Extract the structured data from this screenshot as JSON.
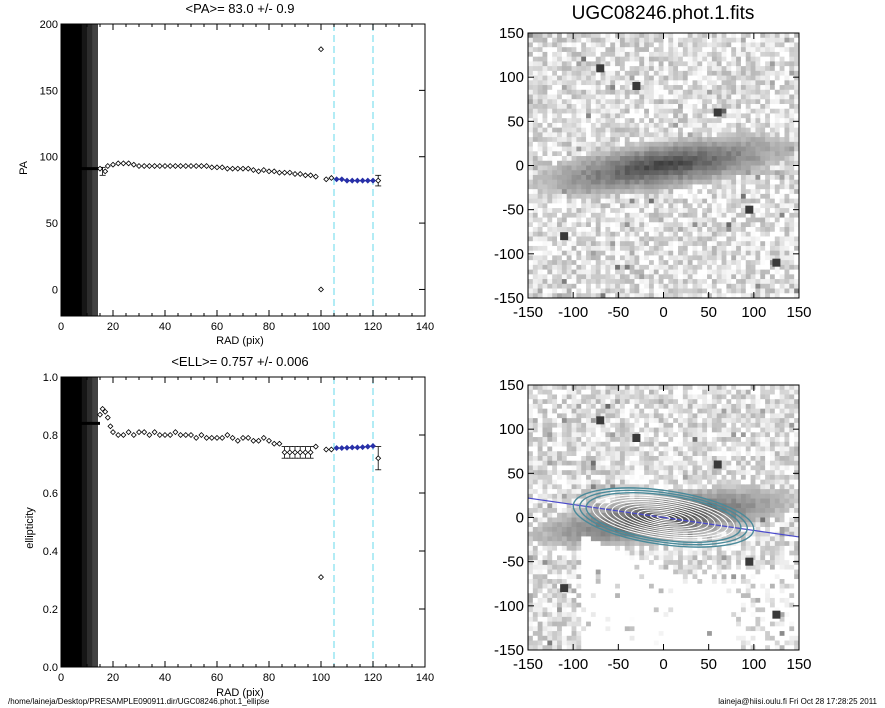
{
  "chart_data": [
    {
      "type": "scatter",
      "title": "<PA>=  83.0 +/-   0.9",
      "xlabel": "RAD (pix)",
      "ylabel": "PA",
      "xlim": [
        0,
        140
      ],
      "ylim": [
        -20,
        200
      ],
      "xticks": [
        0,
        20,
        40,
        60,
        80,
        100,
        120,
        140
      ],
      "yticks": [
        0,
        50,
        100,
        150,
        200
      ],
      "shaded_region_x": [
        0,
        14
      ],
      "dashed_lines_x": [
        105,
        120
      ],
      "series": [
        {
          "points": [
            [
              15,
              91
            ],
            [
              17,
              89
            ],
            [
              18,
              93
            ],
            [
              20,
              94
            ],
            [
              22,
              95
            ],
            [
              24,
              95
            ],
            [
              26,
              95
            ],
            [
              28,
              94
            ],
            [
              30,
              93
            ],
            [
              32,
              93
            ],
            [
              34,
              93
            ],
            [
              36,
              93
            ],
            [
              38,
              93
            ],
            [
              40,
              93
            ],
            [
              42,
              93
            ],
            [
              44,
              93
            ],
            [
              46,
              93
            ],
            [
              48,
              93
            ],
            [
              50,
              93
            ],
            [
              52,
              93
            ],
            [
              54,
              93
            ],
            [
              56,
              93
            ],
            [
              58,
              92
            ],
            [
              60,
              92
            ],
            [
              62,
              92
            ],
            [
              64,
              91
            ],
            [
              66,
              91
            ],
            [
              68,
              91
            ],
            [
              70,
              91
            ],
            [
              72,
              91
            ],
            [
              74,
              90
            ],
            [
              76,
              89
            ],
            [
              78,
              90
            ],
            [
              80,
              89
            ],
            [
              82,
              89
            ],
            [
              84,
              88
            ],
            [
              86,
              88
            ],
            [
              88,
              88
            ],
            [
              90,
              87
            ],
            [
              92,
              87
            ],
            [
              94,
              86
            ],
            [
              96,
              86
            ],
            [
              98,
              85
            ],
            [
              100,
              0
            ],
            [
              100,
              181
            ],
            [
              102,
              83
            ],
            [
              104,
              84
            ],
            [
              122,
              82
            ]
          ],
          "error_bar_points": [
            [
              16,
              89,
              3
            ],
            [
              122,
              82,
              4
            ]
          ]
        },
        {
          "color": "#2830a8",
          "points": [
            [
              106,
              83
            ],
            [
              108,
              83
            ],
            [
              110,
              82
            ],
            [
              112,
              82
            ],
            [
              114,
              82
            ],
            [
              116,
              82
            ],
            [
              118,
              82
            ],
            [
              120,
              82
            ]
          ]
        }
      ]
    },
    {
      "type": "scatter",
      "title": "<ELL>= 0.757 +/-  0.006",
      "xlabel": "RAD (pix)",
      "ylabel": "ellipticity",
      "xlim": [
        0,
        140
      ],
      "ylim": [
        0.0,
        1.0
      ],
      "xticks": [
        0,
        20,
        40,
        60,
        80,
        100,
        120,
        140
      ],
      "yticks": [
        0.0,
        0.2,
        0.4,
        0.6,
        0.8,
        1.0
      ],
      "shaded_region_x": [
        0,
        14
      ],
      "dashed_lines_x": [
        105,
        120
      ],
      "series": [
        {
          "points": [
            [
              15,
              0.87
            ],
            [
              16,
              0.89
            ],
            [
              17,
              0.88
            ],
            [
              18,
              0.86
            ],
            [
              19,
              0.83
            ],
            [
              20,
              0.81
            ],
            [
              22,
              0.8
            ],
            [
              24,
              0.8
            ],
            [
              26,
              0.81
            ],
            [
              28,
              0.8
            ],
            [
              30,
              0.81
            ],
            [
              32,
              0.81
            ],
            [
              34,
              0.8
            ],
            [
              36,
              0.81
            ],
            [
              38,
              0.8
            ],
            [
              40,
              0.8
            ],
            [
              42,
              0.8
            ],
            [
              44,
              0.81
            ],
            [
              46,
              0.8
            ],
            [
              48,
              0.8
            ],
            [
              50,
              0.8
            ],
            [
              52,
              0.79
            ],
            [
              54,
              0.8
            ],
            [
              56,
              0.79
            ],
            [
              58,
              0.79
            ],
            [
              60,
              0.79
            ],
            [
              62,
              0.79
            ],
            [
              64,
              0.8
            ],
            [
              66,
              0.79
            ],
            [
              68,
              0.78
            ],
            [
              70,
              0.79
            ],
            [
              72,
              0.79
            ],
            [
              74,
              0.78
            ],
            [
              76,
              0.78
            ],
            [
              78,
              0.79
            ],
            [
              80,
              0.78
            ],
            [
              82,
              0.77
            ],
            [
              84,
              0.77
            ],
            [
              86,
              0.74
            ],
            [
              88,
              0.74
            ],
            [
              90,
              0.74
            ],
            [
              92,
              0.74
            ],
            [
              94,
              0.74
            ],
            [
              96,
              0.74
            ],
            [
              98,
              0.76
            ],
            [
              100,
              0.31
            ],
            [
              102,
              0.75
            ],
            [
              104,
              0.75
            ],
            [
              122,
              0.72
            ]
          ],
          "error_bar_points": [
            [
              86,
              0.74,
              0.02
            ],
            [
              88,
              0.74,
              0.02
            ],
            [
              90,
              0.74,
              0.02
            ],
            [
              92,
              0.74,
              0.02
            ],
            [
              94,
              0.74,
              0.02
            ],
            [
              96,
              0.74,
              0.02
            ],
            [
              122,
              0.72,
              0.04
            ]
          ]
        },
        {
          "color": "#2830a8",
          "points": [
            [
              106,
              0.755
            ],
            [
              108,
              0.755
            ],
            [
              110,
              0.756
            ],
            [
              112,
              0.757
            ],
            [
              114,
              0.757
            ],
            [
              116,
              0.758
            ],
            [
              118,
              0.76
            ],
            [
              120,
              0.762
            ]
          ]
        }
      ]
    },
    {
      "type": "heatmap",
      "title": "UGC08246.phot.1.fits",
      "xlim": [
        -150,
        150
      ],
      "ylim": [
        -150,
        150
      ],
      "xticks": [
        -150,
        -100,
        -50,
        0,
        50,
        100,
        150
      ],
      "yticks": [
        -150,
        -100,
        -50,
        0,
        50,
        100,
        150
      ]
    },
    {
      "type": "heatmap",
      "title": "",
      "xlim": [
        -150,
        150
      ],
      "ylim": [
        -150,
        150
      ],
      "xticks": [
        -150,
        -100,
        -50,
        0,
        50,
        100,
        150
      ],
      "yticks": [
        -150,
        -100,
        -50,
        0,
        50,
        100,
        150
      ]
    }
  ],
  "footer": {
    "path": "/home/laineja/Desktop/PRESAMPLE090911.dir/UGC08246.phot.1_ellipse",
    "stamp": "laineja@hiisi.oulu.fi  Fri Oct 28 17:28:25 2011"
  }
}
